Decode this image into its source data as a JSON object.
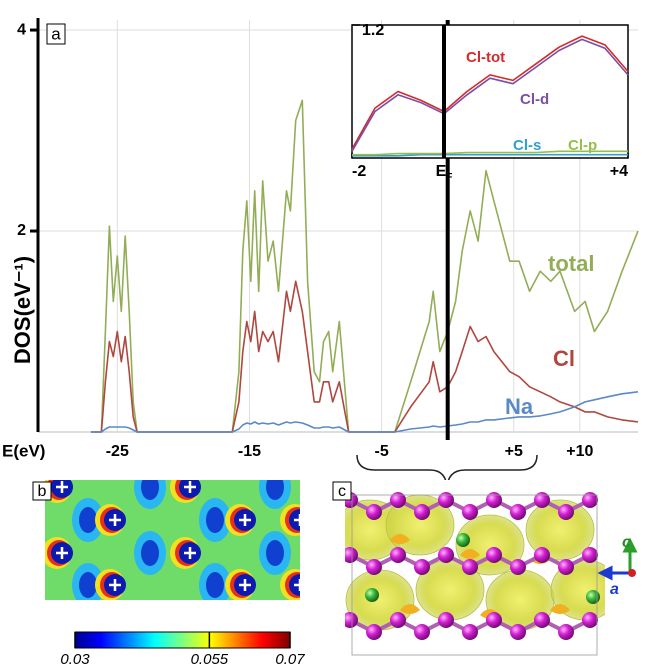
{
  "chart_data": [
    {
      "type": "line",
      "panel_label": "a",
      "y_label": "DOS(eV⁻¹)",
      "x_label": "E(eV)",
      "x": [
        -27,
        -26.2,
        -25.9,
        -25.6,
        -25.3,
        -25.0,
        -24.7,
        -24.4,
        -24.1,
        -23.8,
        -23.5,
        -21,
        -16.3,
        -15.8,
        -15.5,
        -15.2,
        -14.9,
        -14.6,
        -14.3,
        -14.0,
        -13.6,
        -13.2,
        -12.8,
        -12.2,
        -11.9,
        -11.5,
        -11.0,
        -10.6,
        -10.1,
        -9.7,
        -9.4,
        -9.0,
        -8.7,
        -8.2,
        -7.5,
        -4,
        -2.8,
        -1.4,
        -1.1,
        -0.6,
        0,
        0.6,
        1.1,
        1.7,
        2.3,
        2.9,
        3.5,
        4.7,
        5.4,
        6.2,
        7.0,
        7.8,
        8.5,
        9.6,
        10.4,
        11.1,
        12.1,
        13.2,
        14.4
      ],
      "series": [
        {
          "name": "total",
          "color": "#93ad57",
          "values": [
            0,
            0,
            1.0,
            2.05,
            1.3,
            1.75,
            1.2,
            1.95,
            1.2,
            0.3,
            0,
            0,
            0,
            0.6,
            1.8,
            2.3,
            1.5,
            2.4,
            1.4,
            2.5,
            1.7,
            1.9,
            1.4,
            2.4,
            2.2,
            3.1,
            3.3,
            1.5,
            0.6,
            0.5,
            0.9,
            1.0,
            0.6,
            1.1,
            0,
            0,
            0.5,
            1.1,
            1.4,
            0.8,
            1.0,
            1.3,
            1.8,
            2.2,
            1.9,
            2.6,
            2.3,
            1.7,
            1.7,
            1.4,
            1.6,
            1.5,
            1.6,
            1.2,
            1.3,
            1.0,
            1.2,
            1.6,
            2.0
          ]
        },
        {
          "name": "Cl",
          "color": "#b0473f",
          "values": [
            0,
            0,
            0.5,
            0.9,
            0.75,
            1.0,
            0.7,
            0.95,
            0.6,
            0.15,
            0,
            0,
            0,
            0.3,
            0.8,
            1.1,
            0.9,
            1.2,
            0.8,
            1.0,
            0.9,
            1.0,
            0.7,
            1.4,
            1.2,
            1.5,
            1.2,
            0.8,
            0.3,
            0.3,
            0.5,
            0.5,
            0.3,
            0.5,
            0,
            0,
            0.25,
            0.5,
            0.7,
            0.4,
            0.45,
            0.6,
            0.8,
            1.05,
            0.9,
            0.95,
            0.8,
            0.6,
            0.55,
            0.45,
            0.4,
            0.35,
            0.3,
            0.25,
            0.2,
            0.2,
            0.15,
            0.12,
            0.1
          ]
        },
        {
          "name": "Na",
          "color": "#5a8ac6",
          "values": [
            0,
            0,
            0.03,
            0.05,
            0.05,
            0.05,
            0.05,
            0.05,
            0.04,
            0.02,
            0,
            0,
            0,
            0.03,
            0.07,
            0.09,
            0.08,
            0.1,
            0.08,
            0.09,
            0.08,
            0.09,
            0.07,
            0.1,
            0.09,
            0.1,
            0.09,
            0.07,
            0.04,
            0.04,
            0.05,
            0.05,
            0.04,
            0.05,
            0,
            0,
            0.03,
            0.05,
            0.06,
            0.05,
            0.06,
            0.07,
            0.08,
            0.1,
            0.1,
            0.12,
            0.12,
            0.14,
            0.15,
            0.15,
            0.16,
            0.18,
            0.2,
            0.25,
            0.3,
            0.32,
            0.35,
            0.38,
            0.4
          ]
        }
      ],
      "xlim": [
        -31,
        14.4
      ],
      "ylim": [
        0,
        4.1
      ],
      "xticks": [
        -25,
        -15,
        -5,
        {
          "value": 5,
          "label": "+5"
        },
        {
          "value": 10,
          "label": "+10"
        }
      ],
      "yticks": [
        2,
        4
      ],
      "grid": true,
      "vline": 0
    },
    {
      "type": "line",
      "x": [
        -2,
        -1.5,
        -1,
        -0.5,
        0,
        0.5,
        1,
        1.5,
        2,
        2.5,
        3,
        3.5,
        4
      ],
      "series": [
        {
          "name": "Cl-tot",
          "color": "#d42a2a",
          "values": [
            0.08,
            0.45,
            0.6,
            0.52,
            0.42,
            0.6,
            0.75,
            0.7,
            0.85,
            1.0,
            1.1,
            1.02,
            0.78
          ]
        },
        {
          "name": "Cl-d",
          "color": "#7b4fa5",
          "values": [
            0.06,
            0.42,
            0.57,
            0.5,
            0.4,
            0.57,
            0.72,
            0.67,
            0.82,
            0.97,
            1.07,
            0.99,
            0.75
          ]
        },
        {
          "name": "Cl-s",
          "color": "#31a0d0",
          "values": [
            0.02,
            0.02,
            0.02,
            0.03,
            0.03,
            0.03,
            0.03,
            0.03,
            0.03,
            0.03,
            0.03,
            0.03,
            0.03
          ]
        },
        {
          "name": "Cl-p",
          "color": "#93bf4a",
          "values": [
            0.03,
            0.03,
            0.04,
            0.04,
            0.04,
            0.05,
            0.05,
            0.05,
            0.05,
            0.06,
            0.06,
            0.06,
            0.06
          ]
        }
      ],
      "xlim": [
        -2,
        4
      ],
      "ylim": [
        0,
        1.2
      ],
      "xticks": [
        -2,
        {
          "value": 0,
          "label": "E",
          "sub": "F"
        },
        {
          "value": 4,
          "label": "+4"
        }
      ],
      "yticks": [
        1.2
      ],
      "vline": 0
    }
  ],
  "panel_b": {
    "label": "b",
    "colorbar": {
      "lim": [
        0.03,
        0.07
      ],
      "ticks": [
        0.03,
        0.055,
        0.07
      ]
    }
  },
  "panel_c": {
    "label": "c",
    "axes": [
      "c",
      "a"
    ]
  }
}
